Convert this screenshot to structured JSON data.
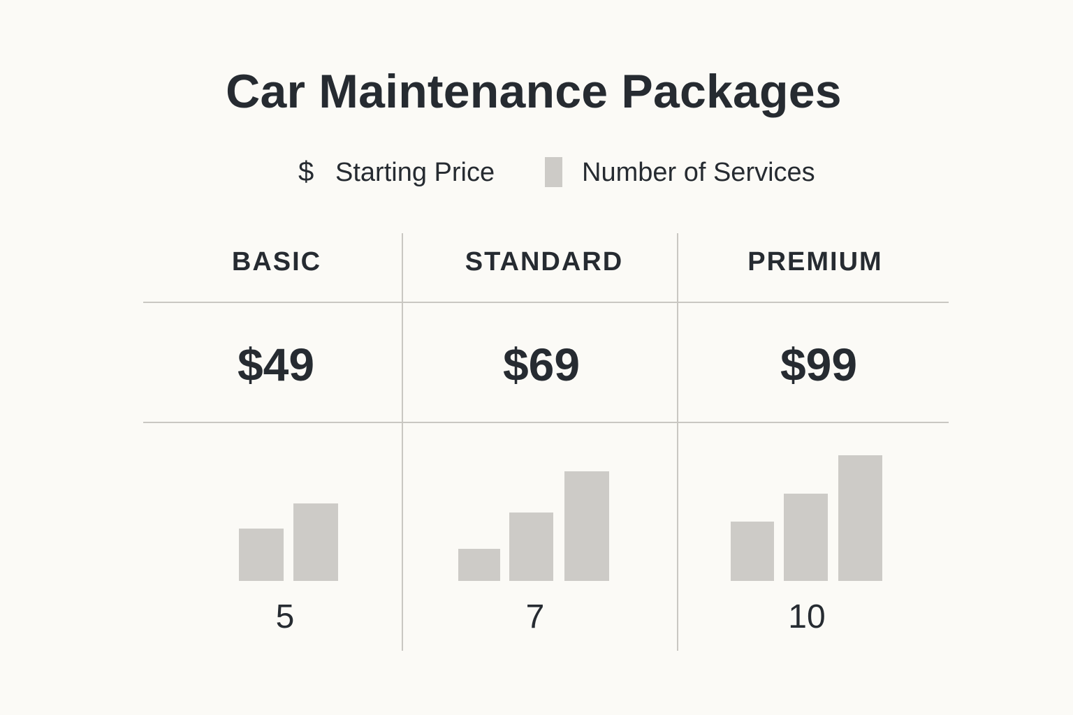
{
  "chart_data": {
    "type": "table",
    "title": "Car Maintenance Packages",
    "legend": [
      {
        "icon": "dollar-icon",
        "label": "Starting Price"
      },
      {
        "icon": "bar-swatch",
        "label": "Number of Services",
        "color": "#cdcbc7"
      }
    ],
    "packages": [
      {
        "name": "BASIC",
        "price": "$49",
        "services": "5",
        "service_value": 5
      },
      {
        "name": "STANDARD",
        "price": "$69",
        "services": "7",
        "service_value": 7
      },
      {
        "name": "PREMIUM",
        "price": "$99",
        "services": "10",
        "service_value": 10
      }
    ]
  },
  "legend_symbols": {
    "dollar": "$"
  },
  "colors": {
    "background": "#fbfaf6",
    "text": "#262b31",
    "bar": "#cdcbc7",
    "grid": "#c9c7c2"
  }
}
